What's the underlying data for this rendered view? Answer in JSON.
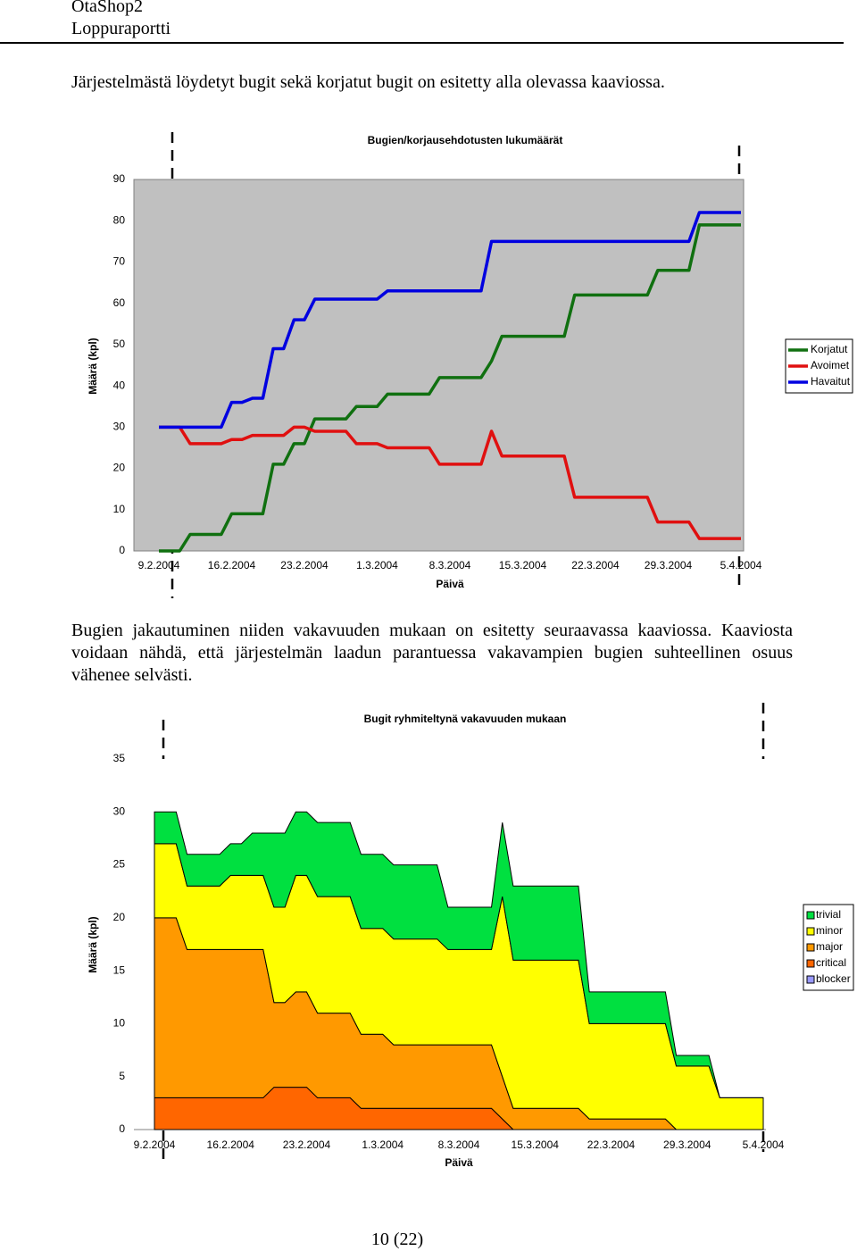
{
  "header": {
    "title": "OtaShop2",
    "subtitle": "Loppuraportti"
  },
  "paragraphs": [
    "Järjestelmästä löydetyt bugit sekä korjatut bugit on esitetty alla olevassa kaaviossa.",
    "Bugien jakautuminen niiden vakavuuden mukaan on esitetty seuraavassa kaaviossa. Kaaviosta voidaan nähdä, että järjestelmän laadun parantuessa vakavampien bugien suhteellinen osuus vähenee selvästi."
  ],
  "chart_data": [
    {
      "type": "line",
      "title": "Bugien/korjausehdotusten lukumäärät",
      "xlabel": "Päivä",
      "ylabel": "Määrä (kpl)",
      "x": [
        "9.2.2004",
        "11.2.2004",
        "12.2.2004",
        "15.2.2004",
        "16.2.2004",
        "17.2.2004",
        "18.2.2004",
        "19.2.2004",
        "20.2.2004",
        "21.2.2004",
        "22.2.2004",
        "23.2.2004",
        "24.2.2004",
        "27.2.2004",
        "28.2.2004",
        "1.3.2004",
        "2.3.2004",
        "6.3.2004",
        "7.3.2004",
        "11.3.2004",
        "12.3.2004",
        "13.3.2004",
        "19.3.2004",
        "20.3.2004",
        "27.3.2004",
        "28.3.2004",
        "31.3.2004",
        "1.4.2004",
        "5.4.2004"
      ],
      "xlim": [
        "9.2.2004",
        "5.4.2004"
      ],
      "xticks": [
        "9.2.2004",
        "16.2.2004",
        "23.2.2004",
        "1.3.2004",
        "8.3.2004",
        "15.3.2004",
        "22.3.2004",
        "29.3.2004",
        "5.4.2004"
      ],
      "ylim": [
        0,
        90
      ],
      "yticks": [
        0,
        10,
        20,
        30,
        40,
        50,
        60,
        70,
        80,
        90
      ],
      "grid": false,
      "plot_background": "#c0c0c0",
      "legend": "right",
      "series": [
        {
          "name": "Korjatut",
          "color": "#107010",
          "values": [
            0,
            0,
            4,
            4,
            9,
            9,
            9,
            9,
            21,
            21,
            26,
            26,
            32,
            32,
            35,
            35,
            38,
            38,
            42,
            42,
            46,
            52,
            52,
            62,
            62,
            68,
            68,
            79,
            79
          ]
        },
        {
          "name": "Avoimet",
          "color": "#e01010",
          "values": [
            30,
            30,
            26,
            26,
            27,
            27,
            28,
            28,
            28,
            28,
            30,
            30,
            29,
            29,
            26,
            26,
            25,
            25,
            21,
            21,
            29,
            23,
            23,
            13,
            13,
            7,
            7,
            3,
            3
          ]
        },
        {
          "name": "Havaitut",
          "color": "#0000e0",
          "values": [
            30,
            30,
            30,
            30,
            36,
            36,
            37,
            37,
            49,
            49,
            56,
            56,
            61,
            61,
            61,
            61,
            63,
            63,
            63,
            63,
            75,
            75,
            75,
            75,
            75,
            75,
            75,
            82,
            82
          ]
        }
      ]
    },
    {
      "type": "area",
      "stacked": true,
      "title": "Bugit ryhmiteltynä vakavuuden mukaan",
      "xlabel": "Päivä",
      "ylabel": "Määrä (kpl)",
      "x": [
        "9.2.2004",
        "11.2.2004",
        "12.2.2004",
        "15.2.2004",
        "16.2.2004",
        "17.2.2004",
        "18.2.2004",
        "19.2.2004",
        "20.2.2004",
        "21.2.2004",
        "22.2.2004",
        "23.2.2004",
        "24.2.2004",
        "27.2.2004",
        "28.2.2004",
        "1.3.2004",
        "2.3.2004",
        "6.3.2004",
        "7.3.2004",
        "11.3.2004",
        "12.3.2004",
        "13.3.2004",
        "19.3.2004",
        "20.3.2004",
        "27.3.2004",
        "28.3.2004",
        "31.3.2004",
        "1.4.2004",
        "5.4.2004"
      ],
      "xlim": [
        "9.2.2004",
        "5.4.2004"
      ],
      "xticks": [
        "9.2.2004",
        "16.2.2004",
        "23.2.2004",
        "1.3.2004",
        "8.3.2004",
        "15.3.2004",
        "22.3.2004",
        "29.3.2004",
        "5.4.2004"
      ],
      "ylim": [
        0,
        35
      ],
      "yticks": [
        0,
        5,
        10,
        15,
        20,
        25,
        30,
        35
      ],
      "grid": false,
      "plot_background": "#ffffff",
      "legend": "right",
      "series": [
        {
          "name": "trivial",
          "color": "#00e040",
          "values": [
            3,
            3,
            3,
            3,
            3,
            3,
            4,
            4,
            7,
            7,
            6,
            6,
            7,
            7,
            7,
            7,
            7,
            7,
            4,
            4,
            7,
            7,
            7,
            3,
            3,
            1,
            1,
            0,
            0
          ]
        },
        {
          "name": "minor",
          "color": "#ffff00",
          "values": [
            7,
            7,
            6,
            6,
            7,
            7,
            7,
            7,
            9,
            9,
            11,
            11,
            11,
            11,
            10,
            10,
            10,
            10,
            9,
            9,
            17,
            14,
            14,
            9,
            9,
            6,
            6,
            3,
            3
          ]
        },
        {
          "name": "major",
          "color": "#ff9900",
          "values": [
            17,
            17,
            14,
            14,
            14,
            14,
            14,
            14,
            8,
            8,
            9,
            9,
            8,
            8,
            7,
            7,
            6,
            6,
            6,
            6,
            4,
            2,
            2,
            1,
            1,
            0,
            0,
            0,
            0
          ]
        },
        {
          "name": "critical",
          "color": "#ff6600",
          "values": [
            3,
            3,
            3,
            3,
            3,
            3,
            3,
            3,
            4,
            4,
            4,
            4,
            3,
            3,
            2,
            2,
            2,
            2,
            2,
            2,
            1,
            0,
            0,
            0,
            0,
            0,
            0,
            0,
            0
          ]
        },
        {
          "name": "blocker",
          "color": "#9999ff",
          "values": [
            0,
            0,
            0,
            0,
            0,
            0,
            0,
            0,
            0,
            0,
            0,
            0,
            0,
            0,
            0,
            0,
            0,
            0,
            0,
            0,
            0,
            0,
            0,
            0,
            0,
            0,
            0,
            0,
            0
          ]
        }
      ]
    }
  ],
  "footer": {
    "page": "10 (22)"
  }
}
